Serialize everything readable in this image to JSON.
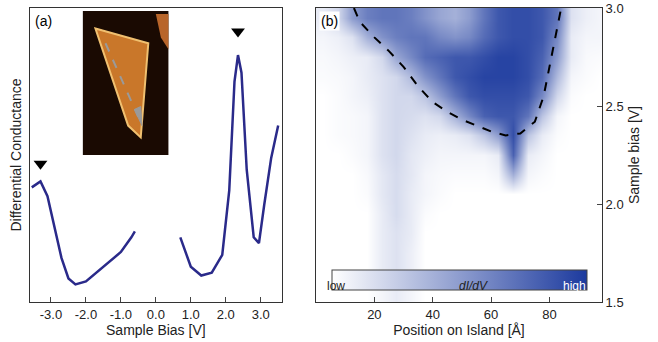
{
  "chart_data": [
    {
      "type": "line",
      "label": "(a)",
      "xlabel": "Sample Bias [V]",
      "ylabel": "Differential Conductance",
      "x": [
        -3.55,
        -3.3,
        -3.1,
        -2.9,
        -2.7,
        -2.5,
        -2.3,
        -2.0,
        -1.7,
        -1.4,
        -1.0,
        -0.7,
        -0.6,
        null,
        0.7,
        1.0,
        1.3,
        1.6,
        1.9,
        2.1,
        2.25,
        2.35,
        2.45,
        2.6,
        2.8,
        2.95,
        3.1,
        3.3,
        3.5
      ],
      "values": [
        0.39,
        0.41,
        0.36,
        0.25,
        0.15,
        0.08,
        0.06,
        0.07,
        0.1,
        0.13,
        0.17,
        0.22,
        0.24,
        null,
        0.22,
        0.12,
        0.09,
        0.1,
        0.16,
        0.38,
        0.75,
        0.84,
        0.78,
        0.45,
        0.22,
        0.2,
        0.33,
        0.49,
        0.6
      ],
      "color": "#2a2a8a",
      "xlim": [
        -3.6,
        3.6
      ],
      "xticks": [
        {
          "value": -3,
          "label": "-3.0"
        },
        {
          "value": -2,
          "label": "-2.0"
        },
        {
          "value": -1,
          "label": "-1.0"
        },
        {
          "value": 0,
          "label": "0.0"
        },
        {
          "value": 1,
          "label": "1.0"
        },
        {
          "value": 2,
          "label": "2.0"
        },
        {
          "value": 3,
          "label": "3.0"
        }
      ],
      "ylim": [
        0,
        1
      ],
      "tick_labels": "x",
      "peaks": {
        "x": [
          -3.3,
          2.35
        ],
        "values": [
          0.47,
          0.92
        ],
        "marker": "triangle-down",
        "color": "#000000"
      }
    },
    {
      "type": "heatmap",
      "label": "(b)",
      "xlabel": "Position on Island [Å]",
      "ylabel": "Sample bias [V]",
      "x": [
        2.5,
        7.5,
        12.5,
        17.5,
        22.5,
        27.5,
        32.5,
        37.5,
        42.5,
        47.5,
        52.5,
        57.5,
        62.5,
        67.5,
        72.5,
        77.5,
        82.5,
        87.5,
        92.5,
        97.5
      ],
      "y": [
        1.55,
        1.65,
        1.75,
        1.85,
        1.95,
        2.05,
        2.15,
        2.25,
        2.35,
        2.45,
        2.55,
        2.65,
        2.75,
        2.85,
        2.95
      ],
      "z": [
        [
          0,
          0,
          0,
          0,
          0.05,
          0.1,
          0.05,
          0,
          0,
          0,
          0,
          0,
          0,
          0,
          0,
          0,
          0,
          0,
          0,
          0
        ],
        [
          0,
          0,
          0,
          0,
          0.1,
          0.15,
          0.08,
          0,
          0,
          0,
          0,
          0,
          0,
          0,
          0,
          0,
          0,
          0,
          0,
          0
        ],
        [
          0,
          0,
          0,
          0,
          0.1,
          0.15,
          0.08,
          0,
          0,
          0,
          0,
          0,
          0,
          0,
          0,
          0,
          0,
          0,
          0,
          0
        ],
        [
          0,
          0,
          0,
          0,
          0.1,
          0.15,
          0.1,
          0,
          0,
          0,
          0,
          0,
          0,
          0,
          0,
          0,
          0,
          0,
          0,
          0
        ],
        [
          0,
          0,
          0,
          0,
          0.1,
          0.18,
          0.1,
          0.02,
          0,
          0,
          0,
          0,
          0,
          0,
          0,
          0,
          0,
          0,
          0,
          0
        ],
        [
          0,
          0,
          0,
          0.02,
          0.12,
          0.18,
          0.1,
          0.05,
          0.02,
          0,
          0,
          0,
          0,
          0,
          0,
          0,
          0,
          0,
          0,
          0
        ],
        [
          0,
          0,
          0,
          0.03,
          0.12,
          0.18,
          0.12,
          0.05,
          0.03,
          0.02,
          0.02,
          0.02,
          0.05,
          0.4,
          0.05,
          0.02,
          0,
          0,
          0,
          0
        ],
        [
          0,
          0,
          0.02,
          0.05,
          0.15,
          0.2,
          0.12,
          0.08,
          0.05,
          0.05,
          0.05,
          0.05,
          0.1,
          0.8,
          0.1,
          0.05,
          0,
          0,
          0,
          0
        ],
        [
          0,
          0.02,
          0.03,
          0.05,
          0.15,
          0.2,
          0.15,
          0.1,
          0.08,
          0.1,
          0.15,
          0.3,
          0.5,
          0.9,
          0.3,
          0.1,
          0.02,
          0,
          0,
          0
        ],
        [
          0,
          0.02,
          0.03,
          0.05,
          0.15,
          0.2,
          0.18,
          0.15,
          0.2,
          0.4,
          0.6,
          0.8,
          0.85,
          0.85,
          0.7,
          0.3,
          0.05,
          0,
          0,
          0
        ],
        [
          0,
          0.02,
          0.05,
          0.08,
          0.15,
          0.2,
          0.2,
          0.3,
          0.5,
          0.7,
          0.85,
          0.9,
          0.9,
          0.9,
          0.85,
          0.6,
          0.2,
          0.02,
          0,
          0
        ],
        [
          0.02,
          0.03,
          0.05,
          0.1,
          0.15,
          0.2,
          0.35,
          0.55,
          0.7,
          0.85,
          0.9,
          0.95,
          0.95,
          0.95,
          0.9,
          0.75,
          0.35,
          0.05,
          0.02,
          0
        ],
        [
          0.03,
          0.05,
          0.08,
          0.1,
          0.2,
          0.45,
          0.6,
          0.75,
          0.8,
          0.85,
          0.85,
          0.9,
          0.95,
          0.95,
          0.9,
          0.8,
          0.5,
          0.1,
          0.03,
          0.02
        ],
        [
          0.05,
          0.08,
          0.15,
          0.4,
          0.55,
          0.65,
          0.7,
          0.7,
          0.6,
          0.55,
          0.6,
          0.75,
          0.85,
          0.9,
          0.9,
          0.85,
          0.6,
          0.1,
          0.05,
          0.05
        ],
        [
          0.1,
          0.2,
          0.5,
          0.65,
          0.7,
          0.7,
          0.65,
          0.55,
          0.45,
          0.4,
          0.5,
          0.7,
          0.85,
          0.9,
          0.9,
          0.85,
          0.7,
          0.15,
          0.08,
          0.05
        ]
      ],
      "zlim": [
        0,
        1
      ],
      "colors": [
        "#ffffff",
        "#1c3a9e"
      ],
      "colorbar_labels": [
        "low",
        "dI/dV",
        "high"
      ],
      "xlim": [
        0,
        98
      ],
      "xticks": [
        20,
        40,
        60,
        80
      ],
      "ylim": [
        1.5,
        3.0
      ],
      "yticks": [
        1.5,
        {
          "value": 2,
          "label": "2.0"
        },
        2.5,
        {
          "value": 3,
          "label": "3.0"
        }
      ],
      "boundary": {
        "x": [
          13,
          15,
          20,
          25,
          30,
          35,
          40,
          45,
          50,
          55,
          60,
          65,
          70,
          75,
          78,
          80,
          82,
          84
        ],
        "y": [
          3.0,
          2.93,
          2.85,
          2.78,
          2.7,
          2.6,
          2.52,
          2.47,
          2.43,
          2.4,
          2.37,
          2.35,
          2.36,
          2.42,
          2.55,
          2.7,
          2.85,
          3.0
        ],
        "line_style": "dash",
        "color": "#000000"
      }
    }
  ]
}
